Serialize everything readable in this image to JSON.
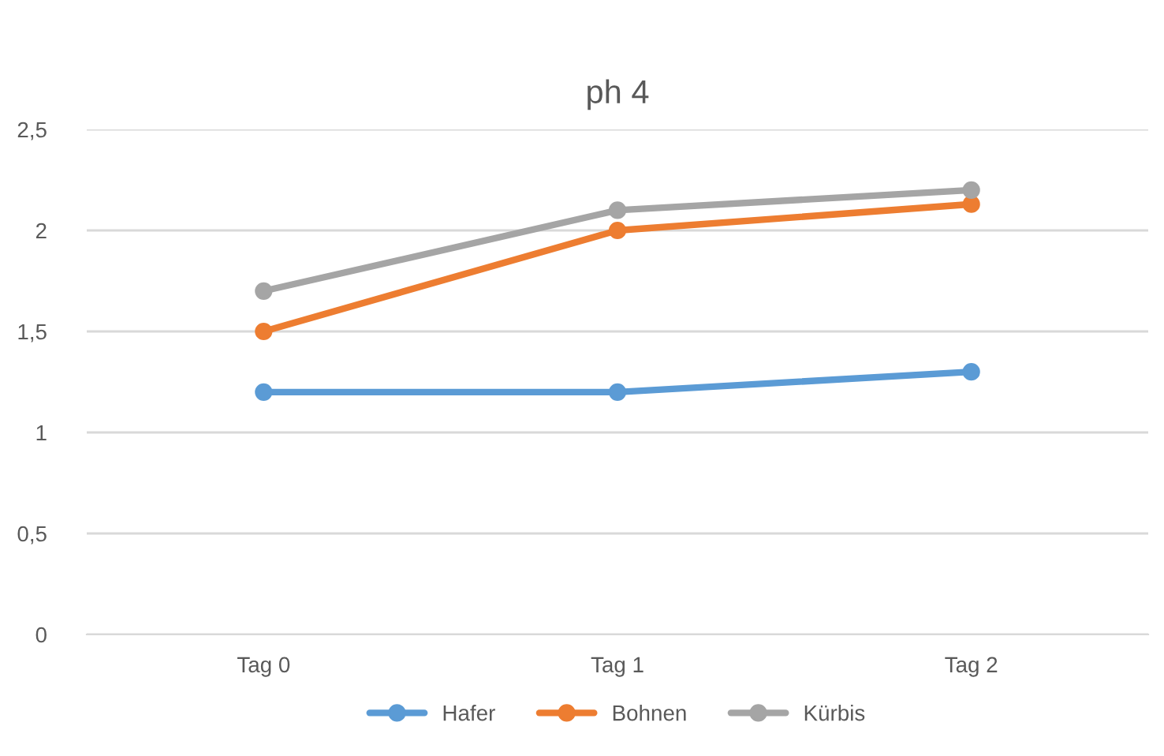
{
  "chart_data": {
    "type": "line",
    "title": "ph 4",
    "categories": [
      "Tag 0",
      "Tag 1",
      "Tag 2"
    ],
    "series": [
      {
        "name": "Hafer",
        "color": "#5b9bd5",
        "values": [
          1.2,
          1.2,
          1.3
        ]
      },
      {
        "name": "Bohnen",
        "color": "#ed7d31",
        "values": [
          1.5,
          2.0,
          2.13
        ]
      },
      {
        "name": "Kürbis",
        "color": "#a5a5a5",
        "values": [
          1.7,
          2.1,
          2.2
        ]
      }
    ],
    "ylim": [
      0,
      2.5
    ],
    "yticks": [
      0,
      {
        "value": 0.5,
        "label": "0,5"
      },
      1,
      {
        "value": 1.5,
        "label": "1,5"
      },
      2,
      {
        "value": 2.5,
        "label": "2,5"
      }
    ],
    "grid": "y",
    "legend": "bottom",
    "marker": "circle",
    "line_style": "solid"
  }
}
